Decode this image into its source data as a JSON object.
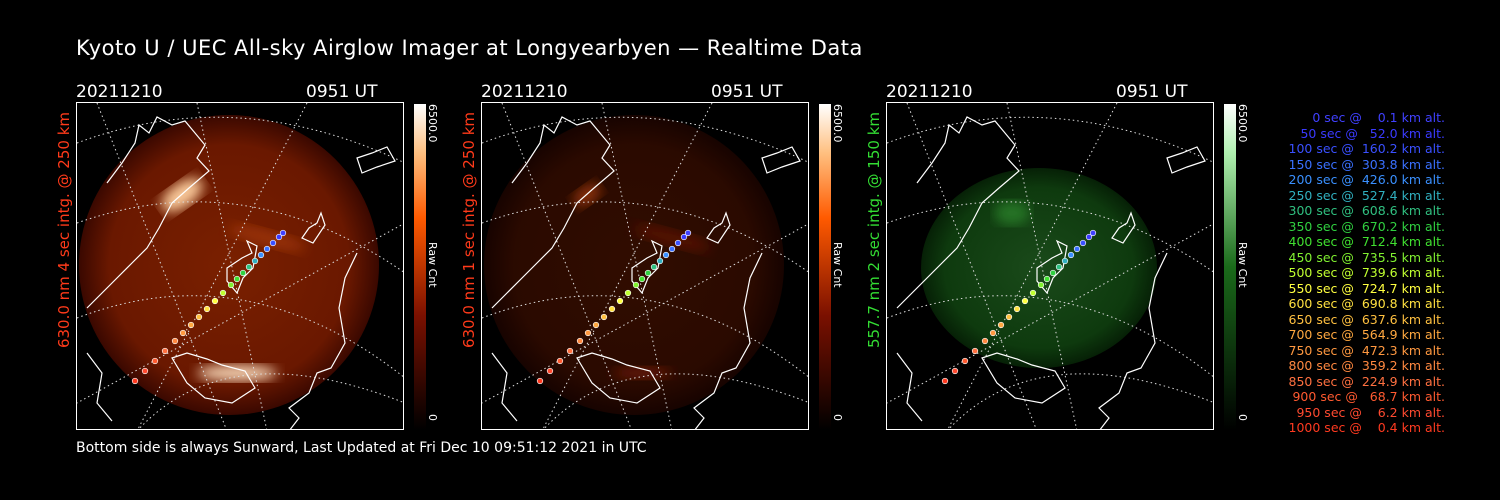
{
  "title": "Kyoto U / UEC All-sky Airglow Imager at Longyearbyen — Realtime Data",
  "footer": "Bottom side is always Sunward, Last Updated at Fri Dec 10 09:51:12 2021 in UTC",
  "panels": [
    {
      "date": "20211210",
      "time": "0951 UT",
      "side_label": "630.0 nm 4 sec intg. @ 250 km",
      "label_color": "#ff3a1a",
      "cbar_max": "6500.0",
      "cbar_unit": "Raw Cnt",
      "cbar_min": "0",
      "palette": "red",
      "brightness": 1.0
    },
    {
      "date": "20211210",
      "time": "0951 UT",
      "side_label": "630.0 nm 1 sec intg. @ 250 km",
      "label_color": "#ff3a1a",
      "cbar_max": "6500.0",
      "cbar_unit": "Raw Cnt",
      "cbar_min": "0",
      "palette": "red",
      "brightness": 0.4
    },
    {
      "date": "20211210",
      "time": "0951 UT",
      "side_label": "557.7 nm 2 sec intg. @ 150 km",
      "label_color": "#33dd33",
      "cbar_max": "6500.0",
      "cbar_unit": "Raw Cnt",
      "cbar_min": "0",
      "palette": "green",
      "brightness": 0.6
    }
  ],
  "legend": [
    {
      "text": "0 sec @    0.1 km alt.",
      "color": "#4040ff"
    },
    {
      "text": "50 sec @   52.0 km alt.",
      "color": "#3a3aff"
    },
    {
      "text": "100 sec @  160.2 km alt.",
      "color": "#3a50ff"
    },
    {
      "text": "150 sec @  303.8 km alt.",
      "color": "#3a70ff"
    },
    {
      "text": "200 sec @  426.0 km alt.",
      "color": "#3a90ff"
    },
    {
      "text": "250 sec @  527.4 km alt.",
      "color": "#30b0c0"
    },
    {
      "text": "300 sec @  608.6 km alt.",
      "color": "#30c080"
    },
    {
      "text": "350 sec @  670.2 km alt.",
      "color": "#30d040"
    },
    {
      "text": "400 sec @  712.4 km alt.",
      "color": "#40e030"
    },
    {
      "text": "450 sec @  735.5 km alt.",
      "color": "#80f030"
    },
    {
      "text": "500 sec @  739.6 km alt.",
      "color": "#c0ff30"
    },
    {
      "text": "550 sec @  724.7 km alt.",
      "color": "#ffff40"
    },
    {
      "text": "600 sec @  690.8 km alt.",
      "color": "#ffe040"
    },
    {
      "text": "650 sec @  637.6 km alt.",
      "color": "#ffc040"
    },
    {
      "text": "700 sec @  564.9 km alt.",
      "color": "#ffa840"
    },
    {
      "text": "750 sec @  472.3 km alt.",
      "color": "#ff9840"
    },
    {
      "text": "800 sec @  359.2 km alt.",
      "color": "#ff8840"
    },
    {
      "text": "850 sec @  224.9 km alt.",
      "color": "#ff7040"
    },
    {
      "text": "900 sec @   68.7 km alt.",
      "color": "#ff5a30"
    },
    {
      "text": "950 sec @    6.2 km alt.",
      "color": "#ff4a30"
    },
    {
      "text": "1000 sec @    0.4 km alt.",
      "color": "#ff3a20"
    }
  ]
}
